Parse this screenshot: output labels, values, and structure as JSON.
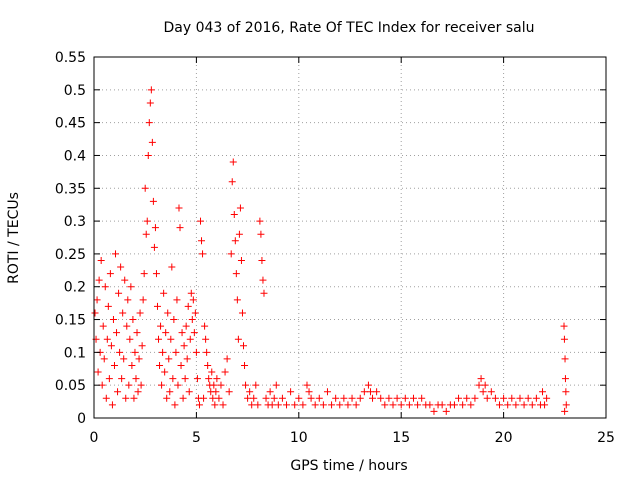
{
  "chart_data": {
    "type": "scatter",
    "title": "Day 043 of 2016, Rate Of TEC Index for receiver salu",
    "xlabel": "GPS time / hours",
    "ylabel": "ROTI / TECUs",
    "xlim": [
      0,
      25
    ],
    "ylim": [
      0,
      0.55
    ],
    "x_ticks": [
      0,
      5,
      10,
      15,
      20,
      25
    ],
    "y_ticks": [
      0,
      0.05,
      0.1,
      0.15,
      0.2,
      0.25,
      0.3,
      0.35,
      0.4,
      0.45,
      0.5,
      0.55
    ],
    "grid": true,
    "marker": "+",
    "series": [
      {
        "color": "#ff0000",
        "points": [
          [
            0.05,
            0.16
          ],
          [
            0.1,
            0.12
          ],
          [
            0.15,
            0.18
          ],
          [
            0.2,
            0.07
          ],
          [
            0.25,
            0.21
          ],
          [
            0.3,
            0.1
          ],
          [
            0.35,
            0.24
          ],
          [
            0.4,
            0.05
          ],
          [
            0.45,
            0.14
          ],
          [
            0.5,
            0.09
          ],
          [
            0.55,
            0.2
          ],
          [
            0.6,
            0.03
          ],
          [
            0.65,
            0.12
          ],
          [
            0.7,
            0.17
          ],
          [
            0.75,
            0.06
          ],
          [
            0.8,
            0.22
          ],
          [
            0.85,
            0.11
          ],
          [
            0.9,
            0.02
          ],
          [
            0.95,
            0.15
          ],
          [
            1.0,
            0.08
          ],
          [
            1.05,
            0.25
          ],
          [
            1.1,
            0.13
          ],
          [
            1.15,
            0.04
          ],
          [
            1.2,
            0.19
          ],
          [
            1.25,
            0.1
          ],
          [
            1.3,
            0.23
          ],
          [
            1.35,
            0.06
          ],
          [
            1.4,
            0.16
          ],
          [
            1.45,
            0.09
          ],
          [
            1.5,
            0.21
          ],
          [
            1.55,
            0.03
          ],
          [
            1.6,
            0.14
          ],
          [
            1.65,
            0.18
          ],
          [
            1.7,
            0.05
          ],
          [
            1.75,
            0.12
          ],
          [
            1.8,
            0.2
          ],
          [
            1.85,
            0.08
          ],
          [
            1.9,
            0.15
          ],
          [
            1.95,
            0.03
          ],
          [
            2.0,
            0.1
          ],
          [
            2.05,
            0.06
          ],
          [
            2.1,
            0.13
          ],
          [
            2.15,
            0.04
          ],
          [
            2.2,
            0.09
          ],
          [
            2.25,
            0.16
          ],
          [
            2.3,
            0.05
          ],
          [
            2.35,
            0.11
          ],
          [
            2.4,
            0.18
          ],
          [
            2.45,
            0.22
          ],
          [
            2.5,
            0.35
          ],
          [
            2.55,
            0.28
          ],
          [
            2.6,
            0.3
          ],
          [
            2.65,
            0.4
          ],
          [
            2.7,
            0.45
          ],
          [
            2.75,
            0.48
          ],
          [
            2.8,
            0.5
          ],
          [
            2.85,
            0.42
          ],
          [
            2.9,
            0.33
          ],
          [
            2.95,
            0.26
          ],
          [
            3.0,
            0.29
          ],
          [
            3.05,
            0.22
          ],
          [
            3.1,
            0.17
          ],
          [
            3.15,
            0.12
          ],
          [
            3.2,
            0.08
          ],
          [
            3.25,
            0.14
          ],
          [
            3.3,
            0.05
          ],
          [
            3.35,
            0.1
          ],
          [
            3.4,
            0.19
          ],
          [
            3.45,
            0.07
          ],
          [
            3.5,
            0.13
          ],
          [
            3.55,
            0.03
          ],
          [
            3.6,
            0.16
          ],
          [
            3.65,
            0.09
          ],
          [
            3.7,
            0.04
          ],
          [
            3.75,
            0.12
          ],
          [
            3.8,
            0.23
          ],
          [
            3.85,
            0.06
          ],
          [
            3.9,
            0.15
          ],
          [
            3.95,
            0.02
          ],
          [
            4.0,
            0.1
          ],
          [
            4.05,
            0.18
          ],
          [
            4.1,
            0.05
          ],
          [
            4.15,
            0.32
          ],
          [
            4.2,
            0.29
          ],
          [
            4.25,
            0.08
          ],
          [
            4.3,
            0.13
          ],
          [
            4.35,
            0.03
          ],
          [
            4.4,
            0.11
          ],
          [
            4.45,
            0.06
          ],
          [
            4.5,
            0.14
          ],
          [
            4.55,
            0.09
          ],
          [
            4.6,
            0.17
          ],
          [
            4.65,
            0.04
          ],
          [
            4.7,
            0.12
          ],
          [
            4.75,
            0.19
          ],
          [
            4.8,
            0.15
          ],
          [
            4.85,
            0.18
          ],
          [
            4.9,
            0.13
          ],
          [
            4.95,
            0.16
          ],
          [
            5.0,
            0.1
          ],
          [
            5.05,
            0.06
          ],
          [
            5.1,
            0.03
          ],
          [
            5.15,
            0.02
          ],
          [
            5.2,
            0.3
          ],
          [
            5.25,
            0.27
          ],
          [
            5.3,
            0.25
          ],
          [
            5.35,
            0.03
          ],
          [
            5.4,
            0.14
          ],
          [
            5.45,
            0.12
          ],
          [
            5.5,
            0.1
          ],
          [
            5.55,
            0.08
          ],
          [
            5.6,
            0.06
          ],
          [
            5.65,
            0.05
          ],
          [
            5.7,
            0.04
          ],
          [
            5.75,
            0.07
          ],
          [
            5.8,
            0.03
          ],
          [
            5.85,
            0.05
          ],
          [
            5.9,
            0.02
          ],
          [
            5.95,
            0.04
          ],
          [
            6.0,
            0.06
          ],
          [
            6.1,
            0.03
          ],
          [
            6.2,
            0.05
          ],
          [
            6.3,
            0.02
          ],
          [
            6.4,
            0.07
          ],
          [
            6.5,
            0.09
          ],
          [
            6.6,
            0.04
          ],
          [
            6.7,
            0.25
          ],
          [
            6.75,
            0.36
          ],
          [
            6.8,
            0.39
          ],
          [
            6.85,
            0.31
          ],
          [
            6.9,
            0.27
          ],
          [
            6.95,
            0.22
          ],
          [
            7.0,
            0.18
          ],
          [
            7.05,
            0.12
          ],
          [
            7.1,
            0.28
          ],
          [
            7.15,
            0.32
          ],
          [
            7.2,
            0.24
          ],
          [
            7.25,
            0.16
          ],
          [
            7.3,
            0.11
          ],
          [
            7.35,
            0.08
          ],
          [
            7.4,
            0.05
          ],
          [
            7.5,
            0.03
          ],
          [
            7.6,
            0.04
          ],
          [
            7.7,
            0.02
          ],
          [
            7.8,
            0.03
          ],
          [
            7.9,
            0.05
          ],
          [
            8.0,
            0.02
          ],
          [
            8.1,
            0.3
          ],
          [
            8.15,
            0.28
          ],
          [
            8.2,
            0.24
          ],
          [
            8.25,
            0.21
          ],
          [
            8.3,
            0.19
          ],
          [
            8.4,
            0.03
          ],
          [
            8.5,
            0.02
          ],
          [
            8.6,
            0.04
          ],
          [
            8.7,
            0.02
          ],
          [
            8.8,
            0.03
          ],
          [
            8.9,
            0.05
          ],
          [
            9.0,
            0.02
          ],
          [
            9.2,
            0.03
          ],
          [
            9.4,
            0.02
          ],
          [
            9.6,
            0.04
          ],
          [
            9.8,
            0.02
          ],
          [
            10.0,
            0.03
          ],
          [
            10.2,
            0.02
          ],
          [
            10.4,
            0.05
          ],
          [
            10.5,
            0.04
          ],
          [
            10.6,
            0.03
          ],
          [
            10.8,
            0.02
          ],
          [
            11.0,
            0.03
          ],
          [
            11.2,
            0.02
          ],
          [
            11.4,
            0.04
          ],
          [
            11.6,
            0.02
          ],
          [
            11.8,
            0.03
          ],
          [
            12.0,
            0.02
          ],
          [
            12.2,
            0.03
          ],
          [
            12.4,
            0.02
          ],
          [
            12.6,
            0.03
          ],
          [
            12.8,
            0.02
          ],
          [
            13.0,
            0.03
          ],
          [
            13.2,
            0.04
          ],
          [
            13.4,
            0.05
          ],
          [
            13.5,
            0.04
          ],
          [
            13.6,
            0.03
          ],
          [
            13.8,
            0.04
          ],
          [
            14.0,
            0.03
          ],
          [
            14.2,
            0.02
          ],
          [
            14.4,
            0.03
          ],
          [
            14.6,
            0.02
          ],
          [
            14.8,
            0.03
          ],
          [
            15.0,
            0.02
          ],
          [
            15.2,
            0.03
          ],
          [
            15.4,
            0.02
          ],
          [
            15.6,
            0.03
          ],
          [
            15.8,
            0.02
          ],
          [
            16.0,
            0.03
          ],
          [
            16.2,
            0.02
          ],
          [
            16.4,
            0.02
          ],
          [
            16.6,
            0.01
          ],
          [
            16.8,
            0.02
          ],
          [
            17.0,
            0.02
          ],
          [
            17.2,
            0.01
          ],
          [
            17.4,
            0.02
          ],
          [
            17.6,
            0.02
          ],
          [
            17.8,
            0.03
          ],
          [
            18.0,
            0.02
          ],
          [
            18.2,
            0.03
          ],
          [
            18.4,
            0.02
          ],
          [
            18.6,
            0.03
          ],
          [
            18.8,
            0.05
          ],
          [
            18.9,
            0.06
          ],
          [
            19.0,
            0.04
          ],
          [
            19.1,
            0.05
          ],
          [
            19.2,
            0.03
          ],
          [
            19.4,
            0.04
          ],
          [
            19.6,
            0.03
          ],
          [
            19.8,
            0.02
          ],
          [
            20.0,
            0.03
          ],
          [
            20.2,
            0.02
          ],
          [
            20.4,
            0.03
          ],
          [
            20.6,
            0.02
          ],
          [
            20.8,
            0.03
          ],
          [
            21.0,
            0.02
          ],
          [
            21.2,
            0.03
          ],
          [
            21.4,
            0.02
          ],
          [
            21.6,
            0.03
          ],
          [
            21.8,
            0.02
          ],
          [
            21.9,
            0.04
          ],
          [
            22.0,
            0.02
          ],
          [
            22.1,
            0.03
          ],
          [
            22.95,
            0.14
          ],
          [
            22.97,
            0.12
          ],
          [
            23.0,
            0.09
          ],
          [
            23.02,
            0.06
          ],
          [
            23.04,
            0.04
          ],
          [
            23.06,
            0.02
          ],
          [
            22.98,
            0.01
          ]
        ]
      }
    ]
  }
}
